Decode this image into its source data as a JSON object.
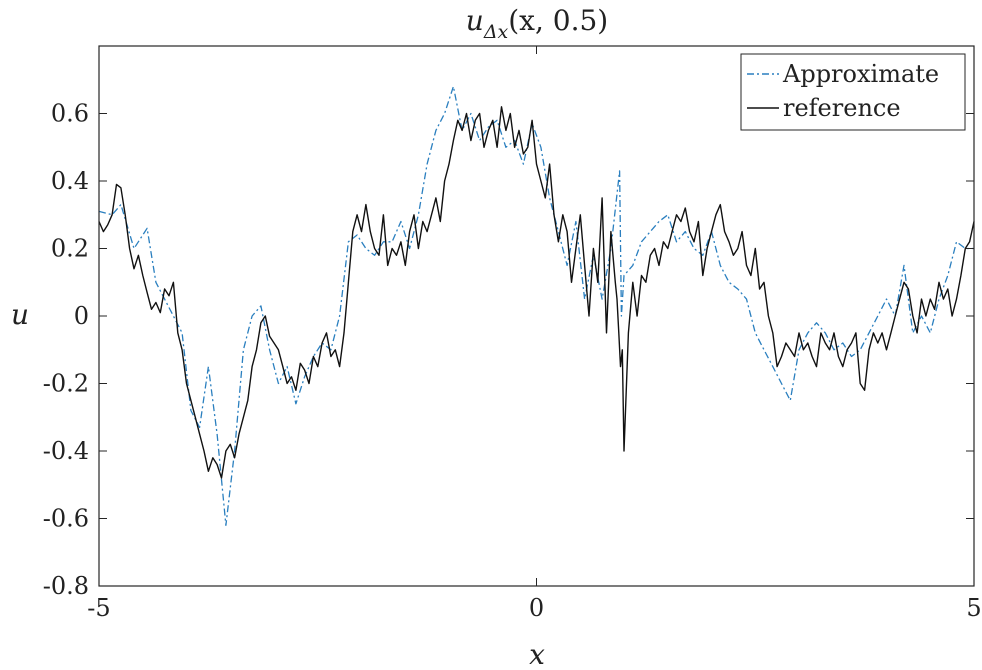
{
  "chart_data": {
    "type": "line",
    "title": "u_{Δx}(x, 0.5)",
    "title_parts": {
      "base": "u",
      "sub": "Δx",
      "rest": "(x, 0.5)"
    },
    "xlabel": "x",
    "ylabel": "u",
    "xlim": [
      -5,
      5
    ],
    "ylim": [
      -0.8,
      0.8
    ],
    "xticks": [
      -5,
      0,
      5
    ],
    "xtick_labels": [
      "-5",
      "0",
      "5"
    ],
    "yticks": [
      -0.8,
      -0.6,
      -0.4,
      -0.2,
      0,
      0.2,
      0.4,
      0.6
    ],
    "ytick_labels": [
      "-0.8",
      "-0.6",
      "-0.4",
      "-0.2",
      "0",
      "0.2",
      "0.4",
      "0.6"
    ],
    "grid": false,
    "legend_position": "top-right",
    "series": [
      {
        "name": "Approximate",
        "color": "#2a7fbf",
        "style": "dash-dot",
        "x": [
          -5.0,
          -4.85,
          -4.75,
          -4.6,
          -4.45,
          -4.35,
          -4.25,
          -4.15,
          -4.05,
          -3.95,
          -3.85,
          -3.75,
          -3.65,
          -3.55,
          -3.45,
          -3.35,
          -3.25,
          -3.15,
          -3.05,
          -2.95,
          -2.85,
          -2.75,
          -2.65,
          -2.55,
          -2.45,
          -2.35,
          -2.25,
          -2.15,
          -2.05,
          -1.95,
          -1.85,
          -1.75,
          -1.65,
          -1.55,
          -1.45,
          -1.35,
          -1.25,
          -1.15,
          -1.05,
          -0.95,
          -0.85,
          -0.75,
          -0.65,
          -0.55,
          -0.45,
          -0.35,
          -0.25,
          -0.15,
          -0.05,
          0.05,
          0.15,
          0.25,
          0.35,
          0.45,
          0.55,
          0.65,
          0.75,
          0.85,
          0.95,
          0.97,
          1.0,
          1.1,
          1.2,
          1.3,
          1.4,
          1.5,
          1.6,
          1.7,
          1.8,
          1.9,
          2.0,
          2.1,
          2.2,
          2.3,
          2.4,
          2.5,
          2.6,
          2.7,
          2.8,
          2.9,
          3.0,
          3.1,
          3.2,
          3.3,
          3.4,
          3.5,
          3.6,
          3.7,
          3.8,
          3.9,
          4.0,
          4.1,
          4.2,
          4.3,
          4.4,
          4.5,
          4.6,
          4.7,
          4.8,
          4.9,
          5.0
        ],
        "y": [
          0.31,
          0.3,
          0.33,
          0.2,
          0.26,
          0.1,
          0.05,
          0.0,
          -0.05,
          -0.28,
          -0.33,
          -0.15,
          -0.35,
          -0.62,
          -0.4,
          -0.1,
          0.0,
          0.03,
          -0.1,
          -0.2,
          -0.15,
          -0.26,
          -0.18,
          -0.12,
          -0.08,
          -0.1,
          0.0,
          0.22,
          0.24,
          0.2,
          0.18,
          0.22,
          0.22,
          0.28,
          0.2,
          0.3,
          0.45,
          0.55,
          0.6,
          0.68,
          0.55,
          0.6,
          0.52,
          0.56,
          0.58,
          0.5,
          0.52,
          0.45,
          0.57,
          0.5,
          0.35,
          0.25,
          0.15,
          0.28,
          0.05,
          0.18,
          0.05,
          0.2,
          0.43,
          0.0,
          0.12,
          0.15,
          0.22,
          0.25,
          0.28,
          0.3,
          0.22,
          0.25,
          0.2,
          0.18,
          0.25,
          0.15,
          0.1,
          0.08,
          0.05,
          -0.05,
          -0.1,
          -0.15,
          -0.2,
          -0.25,
          -0.1,
          -0.05,
          -0.02,
          -0.05,
          -0.1,
          -0.08,
          -0.12,
          -0.1,
          -0.05,
          0.0,
          0.05,
          0.0,
          0.15,
          -0.05,
          0.0,
          -0.05,
          0.05,
          0.12,
          0.22,
          0.2,
          0.2
        ]
      },
      {
        "name": "reference",
        "color": "#111111",
        "style": "solid",
        "x": [
          -5.0,
          -4.95,
          -4.9,
          -4.85,
          -4.8,
          -4.75,
          -4.7,
          -4.65,
          -4.6,
          -4.55,
          -4.5,
          -4.45,
          -4.4,
          -4.35,
          -4.3,
          -4.25,
          -4.2,
          -4.15,
          -4.1,
          -4.05,
          -4.0,
          -3.95,
          -3.9,
          -3.85,
          -3.8,
          -3.75,
          -3.7,
          -3.65,
          -3.6,
          -3.55,
          -3.5,
          -3.45,
          -3.4,
          -3.35,
          -3.3,
          -3.25,
          -3.2,
          -3.15,
          -3.1,
          -3.05,
          -3.0,
          -2.95,
          -2.9,
          -2.85,
          -2.8,
          -2.75,
          -2.7,
          -2.65,
          -2.6,
          -2.55,
          -2.5,
          -2.45,
          -2.4,
          -2.35,
          -2.3,
          -2.25,
          -2.2,
          -2.15,
          -2.1,
          -2.05,
          -2.0,
          -1.95,
          -1.9,
          -1.85,
          -1.8,
          -1.75,
          -1.7,
          -1.65,
          -1.6,
          -1.55,
          -1.5,
          -1.45,
          -1.4,
          -1.35,
          -1.3,
          -1.25,
          -1.2,
          -1.15,
          -1.1,
          -1.05,
          -1.0,
          -0.95,
          -0.9,
          -0.85,
          -0.8,
          -0.75,
          -0.7,
          -0.65,
          -0.6,
          -0.55,
          -0.5,
          -0.45,
          -0.4,
          -0.35,
          -0.3,
          -0.25,
          -0.2,
          -0.15,
          -0.1,
          -0.05,
          0.0,
          0.05,
          0.1,
          0.15,
          0.2,
          0.25,
          0.3,
          0.35,
          0.4,
          0.45,
          0.5,
          0.55,
          0.6,
          0.65,
          0.7,
          0.75,
          0.8,
          0.85,
          0.9,
          0.92,
          0.94,
          0.96,
          0.98,
          1.0,
          1.05,
          1.1,
          1.15,
          1.2,
          1.25,
          1.3,
          1.35,
          1.4,
          1.45,
          1.5,
          1.55,
          1.6,
          1.65,
          1.7,
          1.75,
          1.8,
          1.85,
          1.9,
          1.95,
          2.0,
          2.05,
          2.1,
          2.15,
          2.2,
          2.25,
          2.3,
          2.35,
          2.4,
          2.45,
          2.5,
          2.55,
          2.6,
          2.65,
          2.7,
          2.75,
          2.8,
          2.85,
          2.9,
          2.95,
          3.0,
          3.05,
          3.1,
          3.15,
          3.2,
          3.25,
          3.3,
          3.35,
          3.4,
          3.45,
          3.5,
          3.55,
          3.6,
          3.65,
          3.7,
          3.75,
          3.8,
          3.85,
          3.9,
          3.95,
          4.0,
          4.05,
          4.1,
          4.15,
          4.2,
          4.25,
          4.3,
          4.35,
          4.4,
          4.45,
          4.5,
          4.55,
          4.6,
          4.65,
          4.7,
          4.75,
          4.8,
          4.85,
          4.9,
          4.95,
          5.0
        ],
        "y": [
          0.28,
          0.25,
          0.27,
          0.3,
          0.39,
          0.38,
          0.3,
          0.2,
          0.14,
          0.18,
          0.12,
          0.07,
          0.02,
          0.04,
          0.01,
          0.08,
          0.06,
          0.1,
          -0.05,
          -0.1,
          -0.2,
          -0.25,
          -0.3,
          -0.35,
          -0.4,
          -0.46,
          -0.42,
          -0.44,
          -0.48,
          -0.4,
          -0.38,
          -0.42,
          -0.35,
          -0.3,
          -0.25,
          -0.15,
          -0.1,
          -0.02,
          0.0,
          -0.06,
          -0.08,
          -0.1,
          -0.15,
          -0.2,
          -0.18,
          -0.22,
          -0.14,
          -0.16,
          -0.2,
          -0.12,
          -0.15,
          -0.08,
          -0.05,
          -0.12,
          -0.1,
          -0.15,
          -0.05,
          0.1,
          0.25,
          0.3,
          0.25,
          0.33,
          0.25,
          0.2,
          0.18,
          0.3,
          0.15,
          0.2,
          0.18,
          0.22,
          0.15,
          0.25,
          0.3,
          0.2,
          0.28,
          0.25,
          0.3,
          0.35,
          0.28,
          0.4,
          0.45,
          0.52,
          0.58,
          0.55,
          0.6,
          0.52,
          0.58,
          0.6,
          0.5,
          0.55,
          0.58,
          0.5,
          0.62,
          0.55,
          0.6,
          0.5,
          0.55,
          0.48,
          0.5,
          0.58,
          0.45,
          0.4,
          0.35,
          0.45,
          0.3,
          0.22,
          0.3,
          0.25,
          0.1,
          0.2,
          0.3,
          0.15,
          0.0,
          0.2,
          0.1,
          0.35,
          -0.05,
          0.25,
          0.1,
          0.05,
          -0.05,
          -0.15,
          -0.1,
          -0.4,
          -0.05,
          0.1,
          0.0,
          0.12,
          0.1,
          0.18,
          0.2,
          0.15,
          0.22,
          0.2,
          0.25,
          0.3,
          0.28,
          0.32,
          0.25,
          0.22,
          0.28,
          0.12,
          0.2,
          0.25,
          0.3,
          0.33,
          0.25,
          0.22,
          0.18,
          0.2,
          0.25,
          0.15,
          0.12,
          0.2,
          0.08,
          0.1,
          0.0,
          -0.05,
          -0.15,
          -0.12,
          -0.08,
          -0.1,
          -0.12,
          -0.05,
          -0.1,
          -0.08,
          -0.12,
          -0.15,
          -0.05,
          -0.08,
          -0.1,
          -0.05,
          -0.12,
          -0.15,
          -0.1,
          -0.08,
          -0.05,
          -0.2,
          -0.22,
          -0.1,
          -0.05,
          -0.08,
          -0.05,
          -0.1,
          -0.05,
          0.0,
          0.05,
          0.1,
          0.08,
          0.0,
          -0.05,
          0.05,
          0.0,
          0.05,
          0.02,
          0.1,
          0.05,
          0.08,
          0.0,
          0.05,
          0.12,
          0.2,
          0.22,
          0.28
        ]
      }
    ]
  }
}
